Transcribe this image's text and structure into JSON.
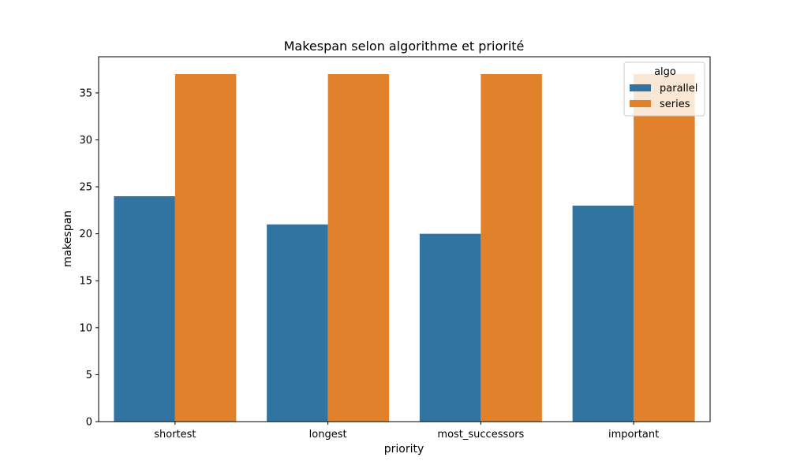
{
  "chart_data": {
    "type": "bar",
    "title": "Makespan selon algorithme et priorité",
    "xlabel": "priority",
    "ylabel": "makespan",
    "categories": [
      "shortest",
      "longest",
      "most_successors",
      "important"
    ],
    "series": [
      {
        "name": "parallel",
        "values": [
          24,
          21,
          20,
          23
        ],
        "color": "#3274a1"
      },
      {
        "name": "series",
        "values": [
          37,
          37,
          37,
          37
        ],
        "color": "#e1812c"
      }
    ],
    "ylim": [
      0,
      38.85
    ],
    "yticks": [
      0,
      5,
      10,
      15,
      20,
      25,
      30,
      35
    ],
    "grid": false,
    "legend": {
      "title": "algo",
      "placement": "top-right"
    }
  }
}
